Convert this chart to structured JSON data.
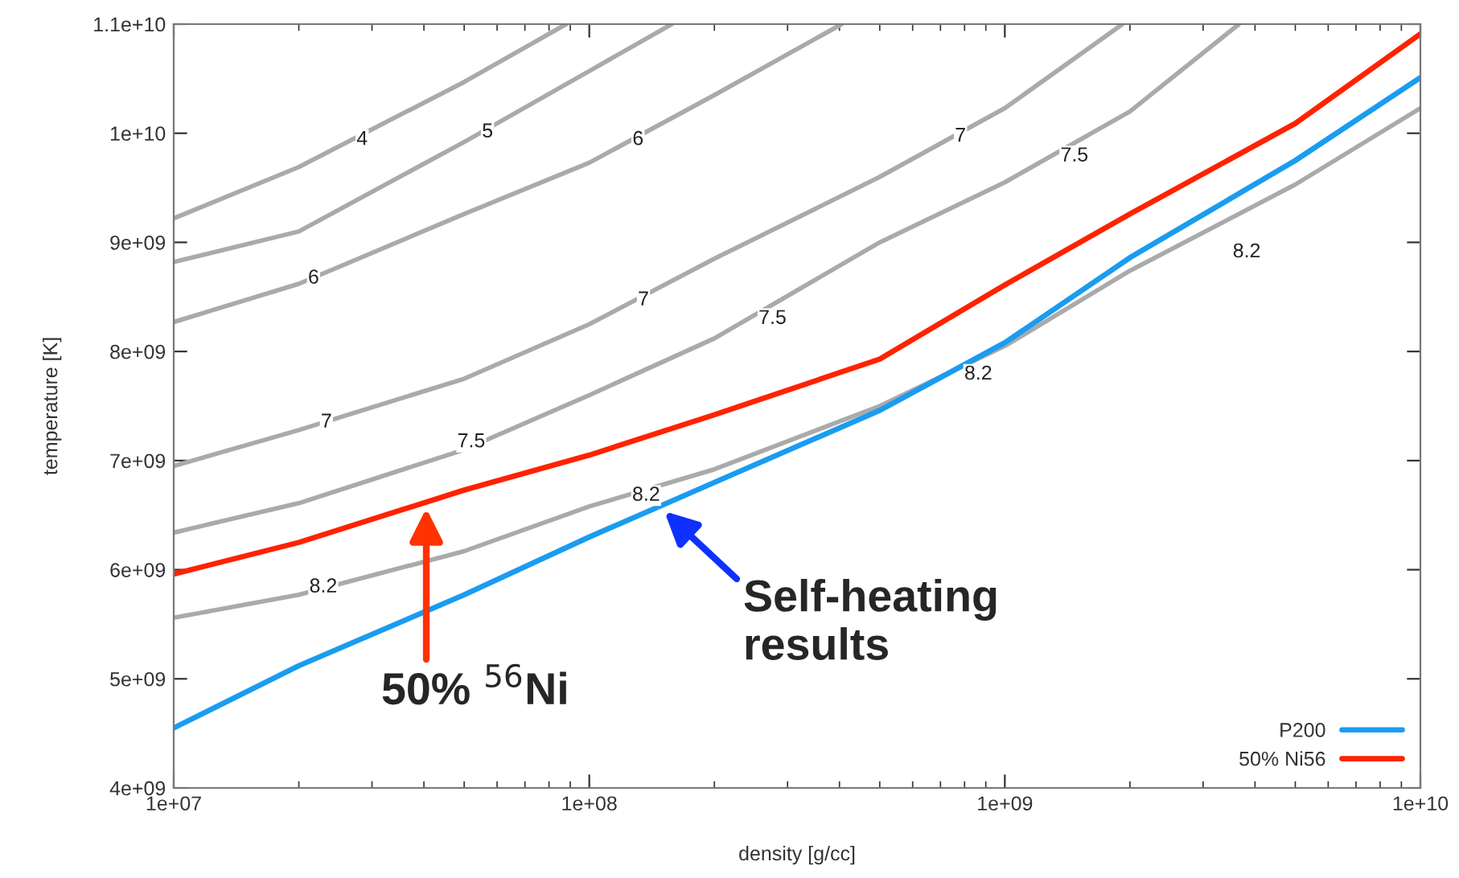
{
  "chart_data": {
    "type": "line",
    "xlabel": "density [g/cc]",
    "ylabel": "temperature [K]",
    "log": "x",
    "xlim": [
      10000000,
      10000000000
    ],
    "ylim": [
      4000000000,
      11000000000
    ],
    "xticks": [
      {
        "value": 10000000,
        "label": "1e+07"
      },
      {
        "value": 100000000,
        "label": "1e+08"
      },
      {
        "value": 1000000000,
        "label": "1e+09"
      },
      {
        "value": 10000000000,
        "label": "1e+10"
      }
    ],
    "yticks": [
      {
        "value": 4000000000,
        "label": "4e+09"
      },
      {
        "value": 5000000000,
        "label": "5e+09"
      },
      {
        "value": 6000000000,
        "label": "6e+09"
      },
      {
        "value": 7000000000,
        "label": "7e+09"
      },
      {
        "value": 8000000000,
        "label": "8e+09"
      },
      {
        "value": 9000000000,
        "label": "9e+09"
      },
      {
        "value": 10000000000,
        "label": "1e+10"
      },
      {
        "value": 11000000000,
        "label": "1.1e+10"
      }
    ],
    "grid": false,
    "legend": "bottom right",
    "marker": "none",
    "line_style": "solid",
    "series": [
      {
        "color": "#aaaaaa",
        "x": [
          10000000,
          20000000,
          50000000,
          88000000
        ],
        "values": [
          9220000000,
          9690000000,
          10470000000,
          11000000000
        ]
      },
      {
        "color": "#aaaaaa",
        "x": [
          10000000,
          20000000,
          50000000,
          100000000,
          158000000
        ],
        "values": [
          8820000000,
          9100000000,
          9920000000,
          10570000000,
          11000000000
        ]
      },
      {
        "color": "#aaaaaa",
        "x": [
          10000000,
          20000000,
          50000000,
          100000000,
          200000000,
          405000000
        ],
        "values": [
          8270000000,
          8620000000,
          9260000000,
          9730000000,
          10350000000,
          11000000000
        ]
      },
      {
        "color": "#aaaaaa",
        "x": [
          10000000,
          20000000,
          50000000,
          100000000,
          200000000,
          500000000,
          1000000000,
          1920000000
        ],
        "values": [
          6950000000,
          7280000000,
          7750000000,
          8250000000,
          8850000000,
          9600000000,
          10230000000,
          11000000000
        ]
      },
      {
        "color": "#aaaaaa",
        "x": [
          10000000,
          20000000,
          50000000,
          100000000,
          200000000,
          500000000,
          1000000000,
          2000000000,
          3660000000
        ],
        "values": [
          6340000000,
          6610000000,
          7100000000,
          7600000000,
          8120000000,
          9000000000,
          9550000000,
          10200000000,
          11000000000
        ]
      },
      {
        "color": "#aaaaaa",
        "x": [
          10000000,
          20000000,
          50000000,
          100000000,
          200000000,
          500000000,
          1000000000,
          2000000000,
          5000000000,
          10000000000
        ],
        "values": [
          5560000000,
          5770000000,
          6170000000,
          6580000000,
          6920000000,
          7500000000,
          8050000000,
          8740000000,
          9530000000,
          10230000000
        ]
      },
      {
        "name": "P200",
        "color": "#1a9cf0",
        "x": [
          10000000,
          20000000,
          50000000,
          100000000,
          200000000,
          500000000,
          1000000000,
          2000000000,
          5000000000,
          10000000000
        ],
        "values": [
          4550000000,
          5120000000,
          5770000000,
          6300000000,
          6800000000,
          7460000000,
          8080000000,
          8860000000,
          9750000000,
          10510000000
        ]
      },
      {
        "name": "50% Ni56",
        "color": "#ff2200",
        "x": [
          10000000,
          20000000,
          50000000,
          100000000,
          200000000,
          500000000,
          1000000000,
          2000000000,
          5000000000,
          10000000000
        ],
        "values": [
          5960000000,
          6250000000,
          6730000000,
          7050000000,
          7420000000,
          7930000000,
          8610000000,
          9260000000,
          10090000000,
          10910000000
        ]
      }
    ],
    "annotations": [
      {
        "text": "4",
        "x": 28400000,
        "y": 9940000000
      },
      {
        "text": "5",
        "x": 56900000,
        "y": 10010000000
      },
      {
        "text": "6",
        "x": 131000000,
        "y": 9940000000
      },
      {
        "text": "6",
        "x": 21700000,
        "y": 8670000000
      },
      {
        "text": "7",
        "x": 782000000,
        "y": 9970000000
      },
      {
        "text": "7",
        "x": 135000000,
        "y": 8470000000
      },
      {
        "text": "7",
        "x": 23300000,
        "y": 7350000000
      },
      {
        "text": "7.5",
        "x": 1470000000,
        "y": 9790000000
      },
      {
        "text": "7.5",
        "x": 276000000,
        "y": 8300000000
      },
      {
        "text": "7.5",
        "x": 52000000,
        "y": 7170000000
      },
      {
        "text": "8.2",
        "x": 3820000000,
        "y": 8910000000
      },
      {
        "text": "8.2",
        "x": 863000000,
        "y": 7790000000
      },
      {
        "text": "8.2",
        "x": 137000000,
        "y": 6680000000
      },
      {
        "text": "8.2",
        "x": 22900000,
        "y": 5840000000
      },
      "50% $^{56}$Ni",
      "Self-heating\nresults"
    ]
  }
}
